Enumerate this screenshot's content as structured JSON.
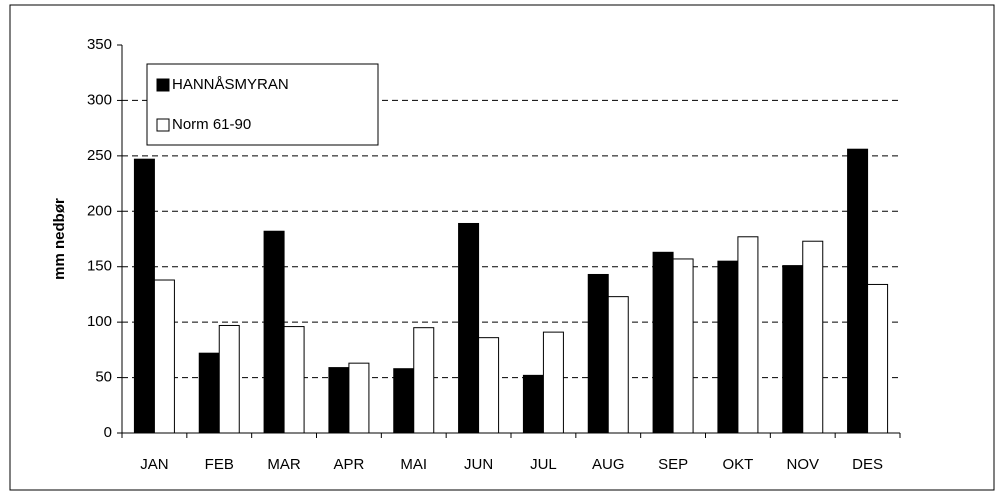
{
  "chart_data": {
    "type": "bar",
    "y_label": "mm nedbør",
    "categories": [
      "JAN",
      "FEB",
      "MAR",
      "APR",
      "MAI",
      "JUN",
      "JUL",
      "AUG",
      "SEP",
      "OKT",
      "NOV",
      "DES"
    ],
    "series": [
      {
        "name": "HANNÅSMYRAN",
        "color": "#000000",
        "values": [
          247,
          72,
          182,
          59,
          58,
          189,
          52,
          143,
          163,
          155,
          151,
          256
        ]
      },
      {
        "name": "Norm 61-90",
        "color": "#ffffff",
        "values": [
          138,
          97,
          96,
          63,
          95,
          86,
          91,
          123,
          157,
          177,
          173,
          134
        ]
      }
    ],
    "ylim": [
      0,
      350
    ],
    "yticks": [
      0,
      50,
      100,
      150,
      200,
      250,
      300,
      350
    ],
    "grid": true,
    "legend": "top-left"
  }
}
